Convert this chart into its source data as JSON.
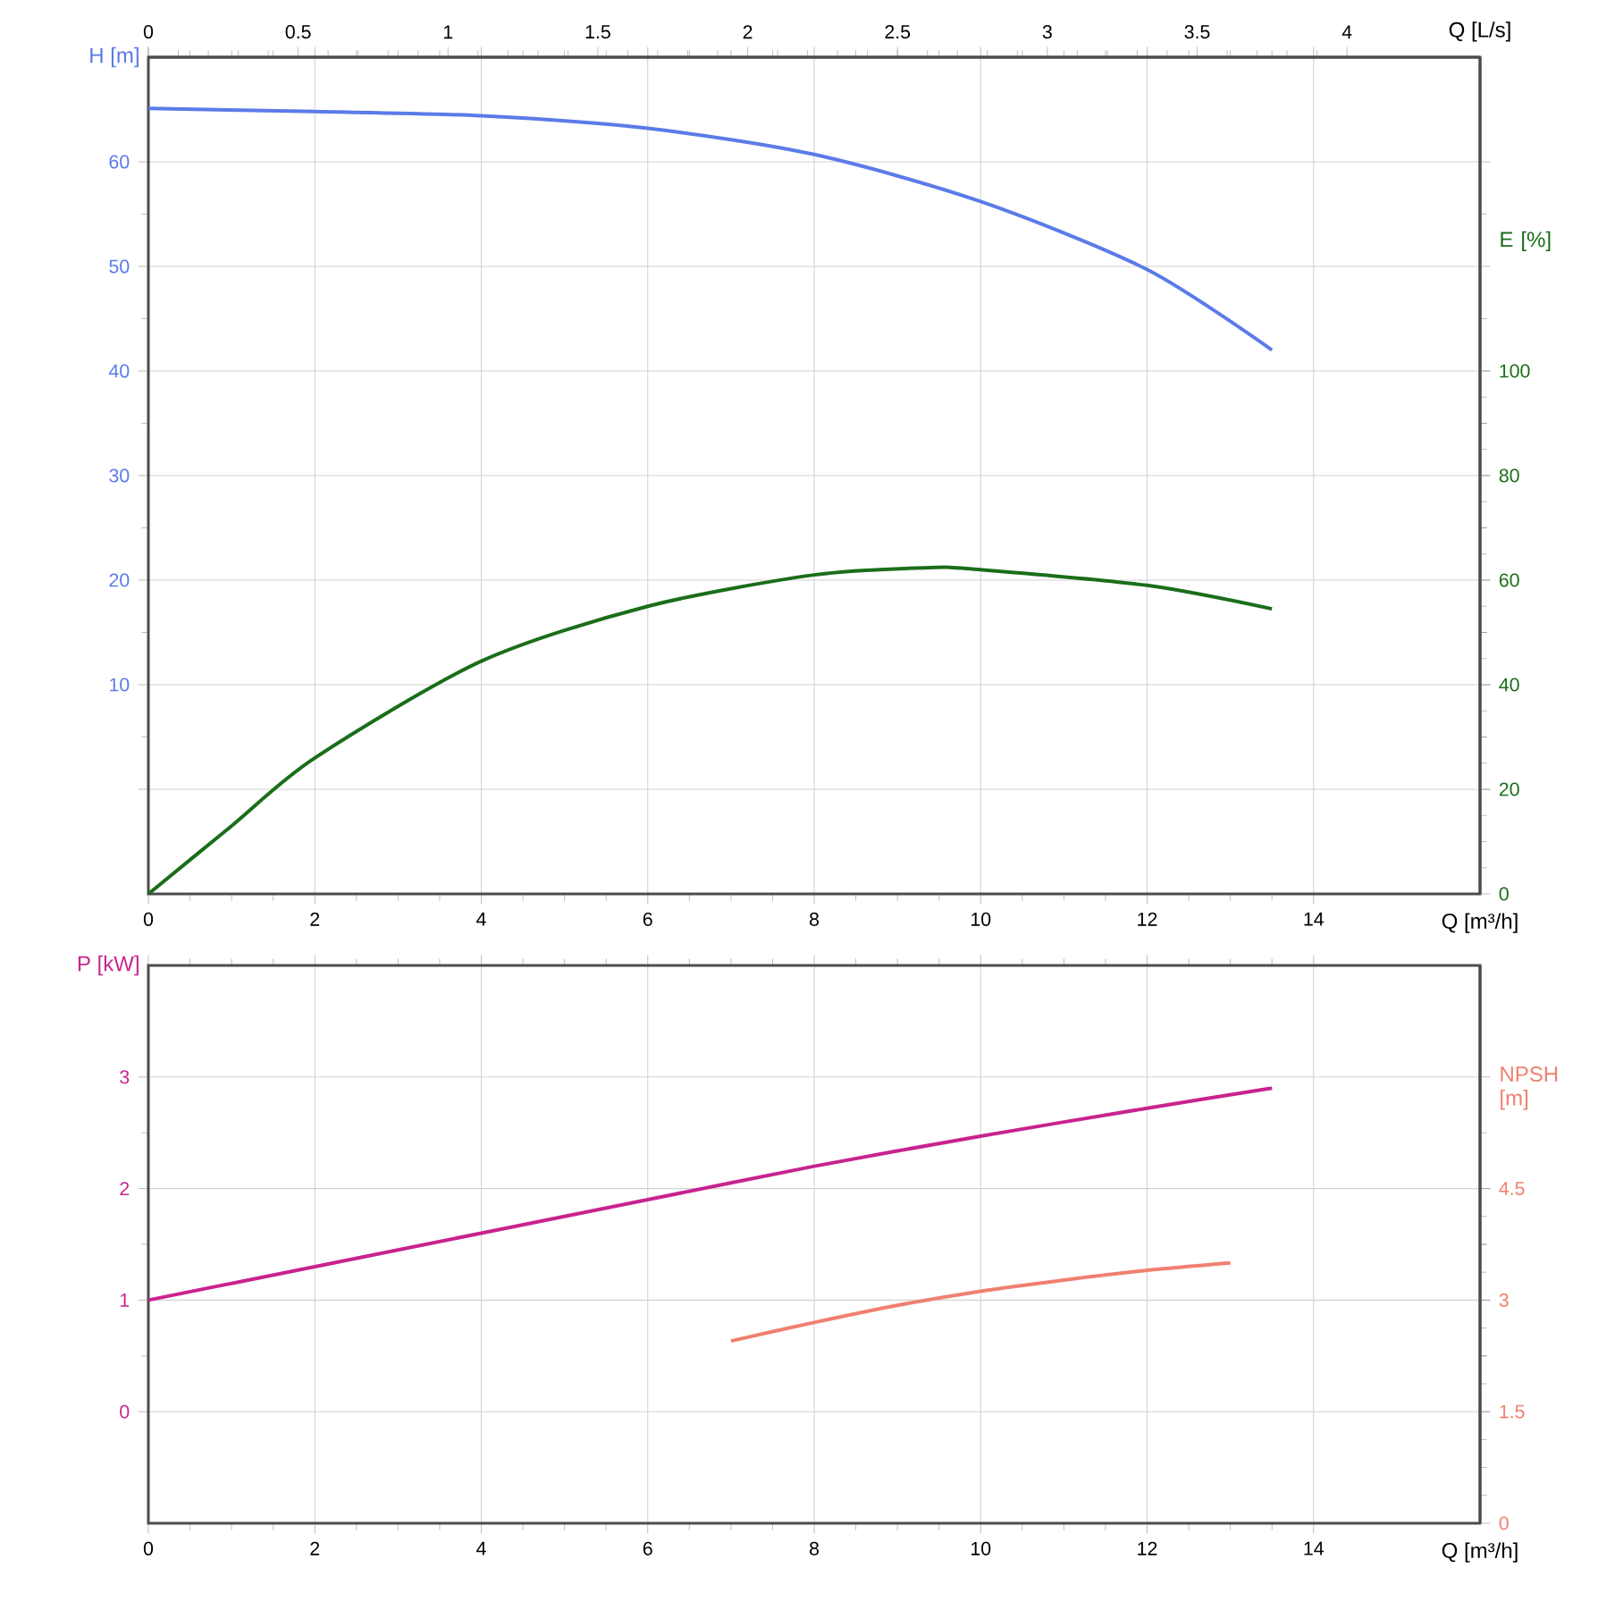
{
  "chart_data": [
    {
      "type": "line",
      "xlabel": "Q [m³/h]",
      "x2label": "Q [L/s]",
      "ylabel": "H [m]",
      "y2label": "E [%]",
      "xlim": [
        0,
        16
      ],
      "xticks": [
        0,
        2,
        4,
        6,
        8,
        10,
        12,
        14
      ],
      "x2lim": [
        0,
        4.444
      ],
      "x2ticks": [
        0,
        0.5,
        1,
        1.5,
        2,
        2.5,
        3,
        3.5,
        4
      ],
      "ylim": [
        -10,
        70
      ],
      "yticks": [
        {
          "value": 0,
          "label": null
        },
        10,
        20,
        30,
        40,
        50,
        60
      ],
      "y2lim": [
        0,
        160
      ],
      "y2ticks": [
        0,
        20,
        40,
        60,
        80,
        100
      ],
      "grid": true,
      "series": [
        {
          "color": "#5b7be8",
          "x": [
            0,
            2,
            4,
            6,
            8,
            10,
            12,
            13.5
          ],
          "values": [
            65.1,
            64.8,
            64.4,
            63.2,
            60.7,
            56.2,
            49.7,
            42
          ]
        },
        {
          "color": "#1a6e1a",
          "axis": "y2",
          "x": [
            0,
            1,
            2,
            4,
            6,
            8,
            9.4,
            10,
            12,
            13.5
          ],
          "values": [
            0,
            13,
            26,
            44.5,
            55,
            61,
            62.4,
            62,
            59,
            54.5
          ]
        }
      ]
    },
    {
      "type": "line",
      "xlabel": "Q [m³/h]",
      "ylabel": "P [kW]",
      "y2label": "NPSH [m]",
      "xlim": [
        0,
        16
      ],
      "xticks": [
        0,
        2,
        4,
        6,
        8,
        10,
        12,
        14
      ],
      "ylim": [
        -1,
        4
      ],
      "yticks": [
        0,
        1,
        2,
        3
      ],
      "y2lim": [
        0,
        7.5
      ],
      "y2ticks": [
        0,
        1.5,
        3,
        4.5
      ],
      "grid": true,
      "series": [
        {
          "color": "#c8238f",
          "x": [
            0,
            2,
            4,
            6,
            8,
            10,
            12,
            13.5
          ],
          "values": [
            1.0,
            1.3,
            1.6,
            1.9,
            2.2,
            2.47,
            2.72,
            2.9
          ]
        },
        {
          "color": "#f08070",
          "axis": "y2",
          "x": [
            7,
            8,
            9,
            10,
            11,
            12,
            13
          ],
          "values": [
            2.45,
            2.7,
            2.93,
            3.12,
            3.27,
            3.4,
            3.5
          ]
        }
      ]
    }
  ]
}
